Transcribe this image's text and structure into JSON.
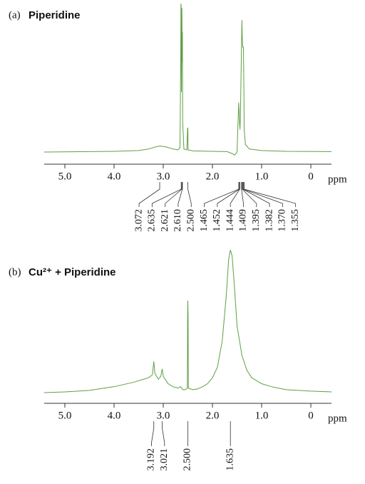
{
  "chart_data": [
    {
      "type": "line",
      "panel": "(a)",
      "title": "Piperidine",
      "xlabel": "ppm",
      "color": "#5f9e45",
      "xlim": [
        5.42,
        -0.42
      ],
      "ylim": [
        0,
        100
      ],
      "xticks": [
        {
          "value": 5,
          "label": "5.0"
        },
        {
          "value": 4,
          "label": "4.0"
        },
        {
          "value": 3,
          "label": "3.0"
        },
        {
          "value": 2,
          "label": "2.0"
        },
        {
          "value": 1,
          "label": "1.0"
        },
        0
      ],
      "x": [
        5.42,
        4.5,
        4.0,
        3.5,
        3.3,
        3.15,
        3.07,
        2.95,
        2.8,
        2.7,
        2.66,
        2.645,
        2.64,
        2.635,
        2.63,
        2.625,
        2.621,
        2.615,
        2.61,
        2.605,
        2.58,
        2.52,
        2.505,
        2.5,
        2.495,
        2.4,
        2.0,
        1.7,
        1.6,
        1.55,
        1.5,
        1.48,
        1.465,
        1.455,
        1.45,
        1.44,
        1.43,
        1.41,
        1.4,
        1.395,
        1.385,
        1.37,
        1.36,
        1.355,
        1.33,
        1.25,
        1.0,
        0.5,
        -0.42
      ],
      "values": [
        0,
        0.3,
        0.5,
        1,
        2,
        3.5,
        4,
        3.5,
        2,
        1.5,
        3,
        60,
        99,
        97,
        40,
        70,
        96,
        60,
        80,
        20,
        2,
        1.5,
        16,
        16,
        1.5,
        0.8,
        0.5,
        0.3,
        -1,
        -2,
        0,
        20,
        33,
        25,
        20,
        15,
        25,
        70,
        88,
        78,
        70,
        70,
        40,
        15,
        5,
        2,
        1,
        0.5,
        0.3
      ],
      "peaks": [
        3.072,
        2.635,
        2.621,
        {
          "value": 2.61,
          "label": "2.610"
        },
        {
          "value": 2.5,
          "label": "2.500"
        },
        1.465,
        1.452,
        1.444,
        1.409,
        1.395,
        1.382,
        {
          "value": 1.37,
          "label": "1.370"
        },
        1.355
      ]
    },
    {
      "type": "line",
      "panel": "(b)",
      "title": "Cu²⁺ + Piperidine",
      "xlabel": "ppm",
      "color": "#5f9e45",
      "xlim": [
        5.42,
        -0.42
      ],
      "ylim": [
        0,
        100
      ],
      "xticks": [
        {
          "value": 5,
          "label": "5.0"
        },
        {
          "value": 4,
          "label": "4.0"
        },
        {
          "value": 3,
          "label": "3.0"
        },
        {
          "value": 2,
          "label": "2.0"
        },
        {
          "value": 1,
          "label": "1.0"
        },
        0
      ],
      "x": [
        5.42,
        5.0,
        4.5,
        4.0,
        3.6,
        3.4,
        3.3,
        3.22,
        3.192,
        3.17,
        3.1,
        3.05,
        3.021,
        3.0,
        2.9,
        2.8,
        2.7,
        2.65,
        2.6,
        2.55,
        2.51,
        2.505,
        2.5,
        2.495,
        2.49,
        2.4,
        2.3,
        2.2,
        2.1,
        2.0,
        1.9,
        1.8,
        1.72,
        1.67,
        1.635,
        1.6,
        1.55,
        1.5,
        1.4,
        1.3,
        1.2,
        1.0,
        0.8,
        0.5,
        0,
        -0.42
      ],
      "values": [
        0,
        0.5,
        1.5,
        4,
        7,
        9,
        10,
        12,
        21,
        13,
        9,
        11,
        16,
        11,
        6,
        4,
        3,
        4,
        2,
        2,
        3,
        50,
        62,
        50,
        3,
        2,
        2.5,
        4,
        6,
        10,
        17,
        35,
        65,
        90,
        96,
        92,
        70,
        45,
        25,
        15,
        10,
        6,
        4,
        2,
        1,
        0.5
      ],
      "peaks": [
        3.192,
        3.021,
        {
          "value": 2.5,
          "label": "2.500"
        },
        1.635
      ]
    }
  ]
}
